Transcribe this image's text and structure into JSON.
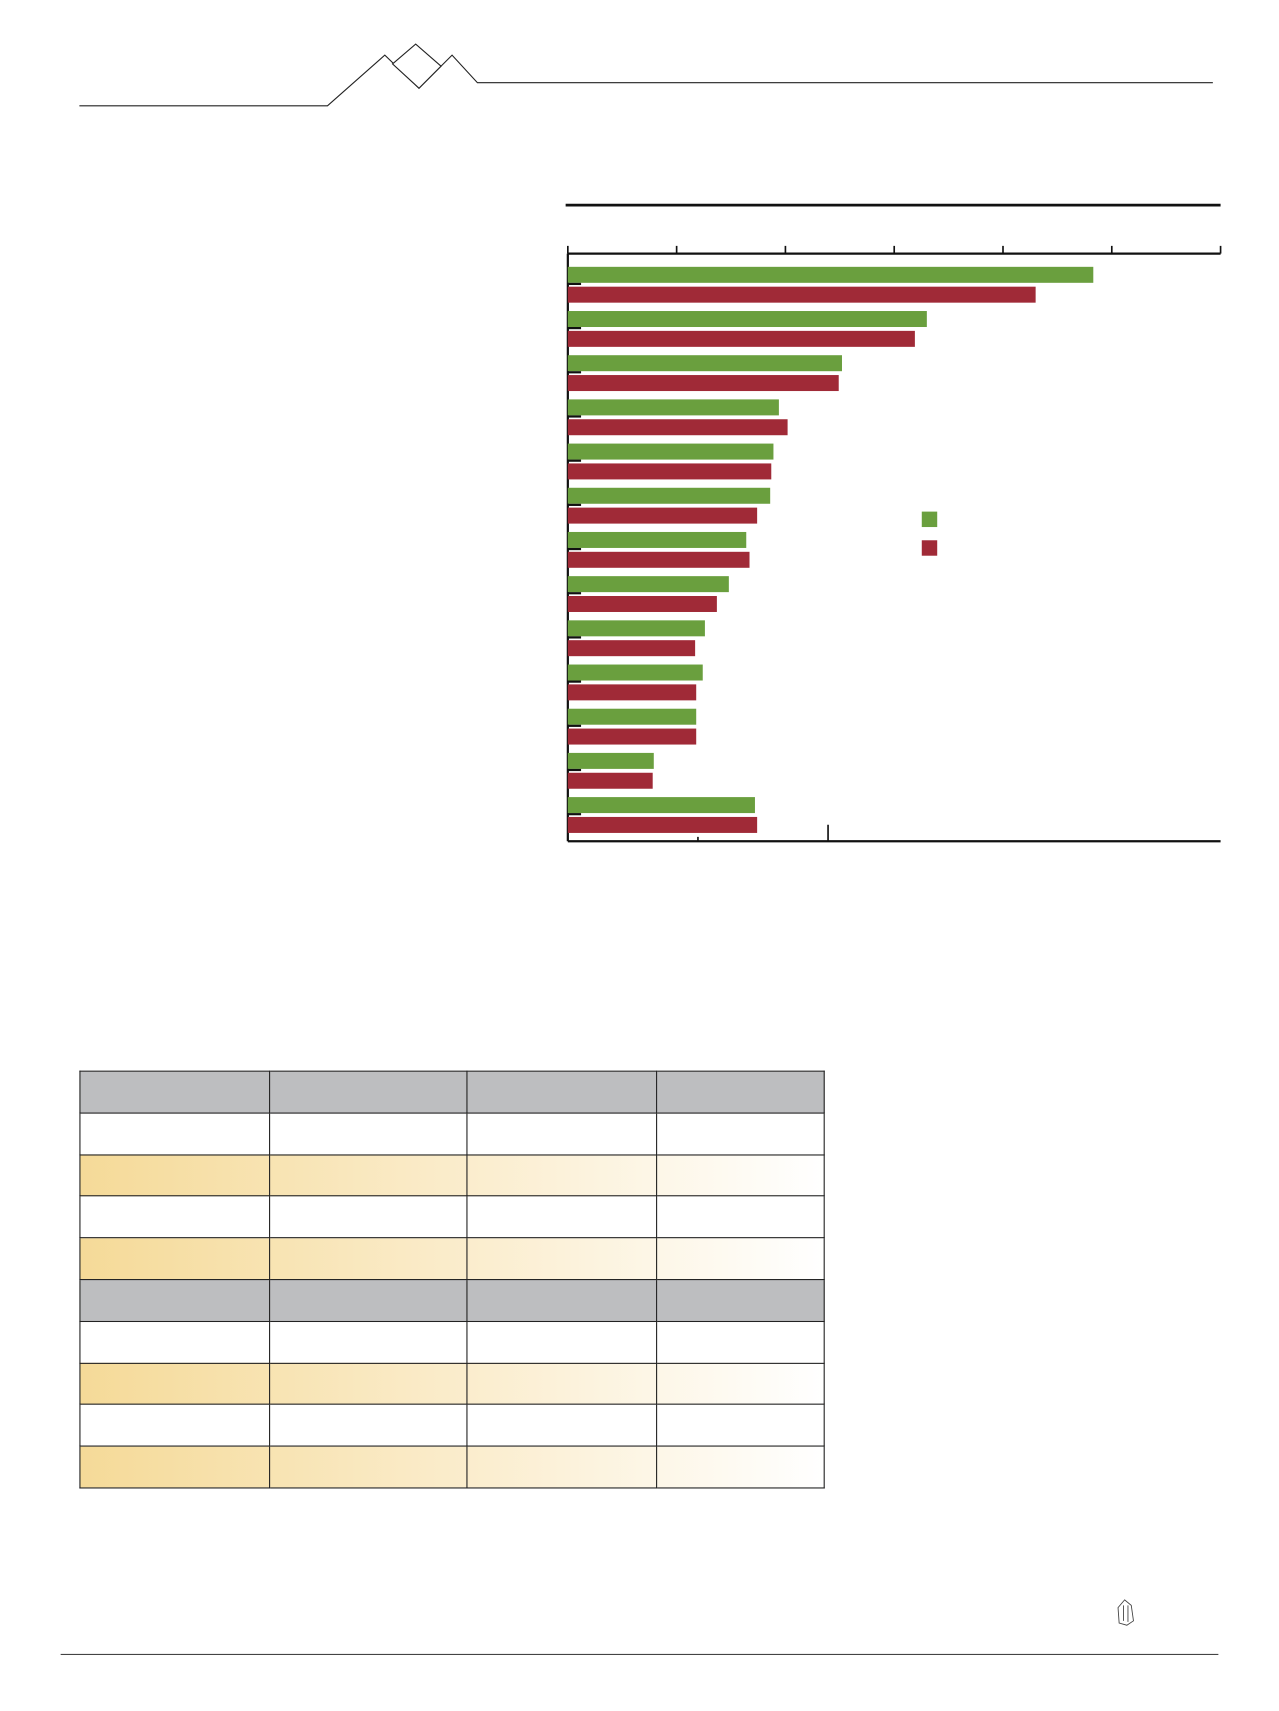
{
  "chart_data": {
    "type": "bar",
    "orientation": "horizontal",
    "xlim": [
      0,
      6
    ],
    "grid": false,
    "legend_position": "right",
    "colors": {
      "series_a": "#6a9f3e",
      "series_b": "#a02a37"
    },
    "series": [
      {
        "color": "#6a9f3e",
        "values": [
          4.83,
          3.3,
          2.52,
          1.94,
          1.89,
          1.86,
          1.64,
          1.48,
          1.26,
          1.24,
          1.18,
          0.79,
          1.72
        ]
      },
      {
        "color": "#a02a37",
        "values": [
          4.3,
          3.19,
          2.49,
          2.02,
          1.87,
          1.74,
          1.67,
          1.37,
          1.17,
          1.18,
          1.18,
          0.78,
          1.74
        ]
      }
    ]
  },
  "table": {
    "columns": 4,
    "rows": [
      "header",
      "plain",
      "highlight",
      "plain",
      "highlight",
      "header",
      "plain",
      "highlight",
      "plain",
      "highlight"
    ],
    "colors": {
      "header": "#bdbec0",
      "highlight": "#f5da98"
    }
  },
  "logo": {
    "icon": "logo-emblem-icon"
  }
}
